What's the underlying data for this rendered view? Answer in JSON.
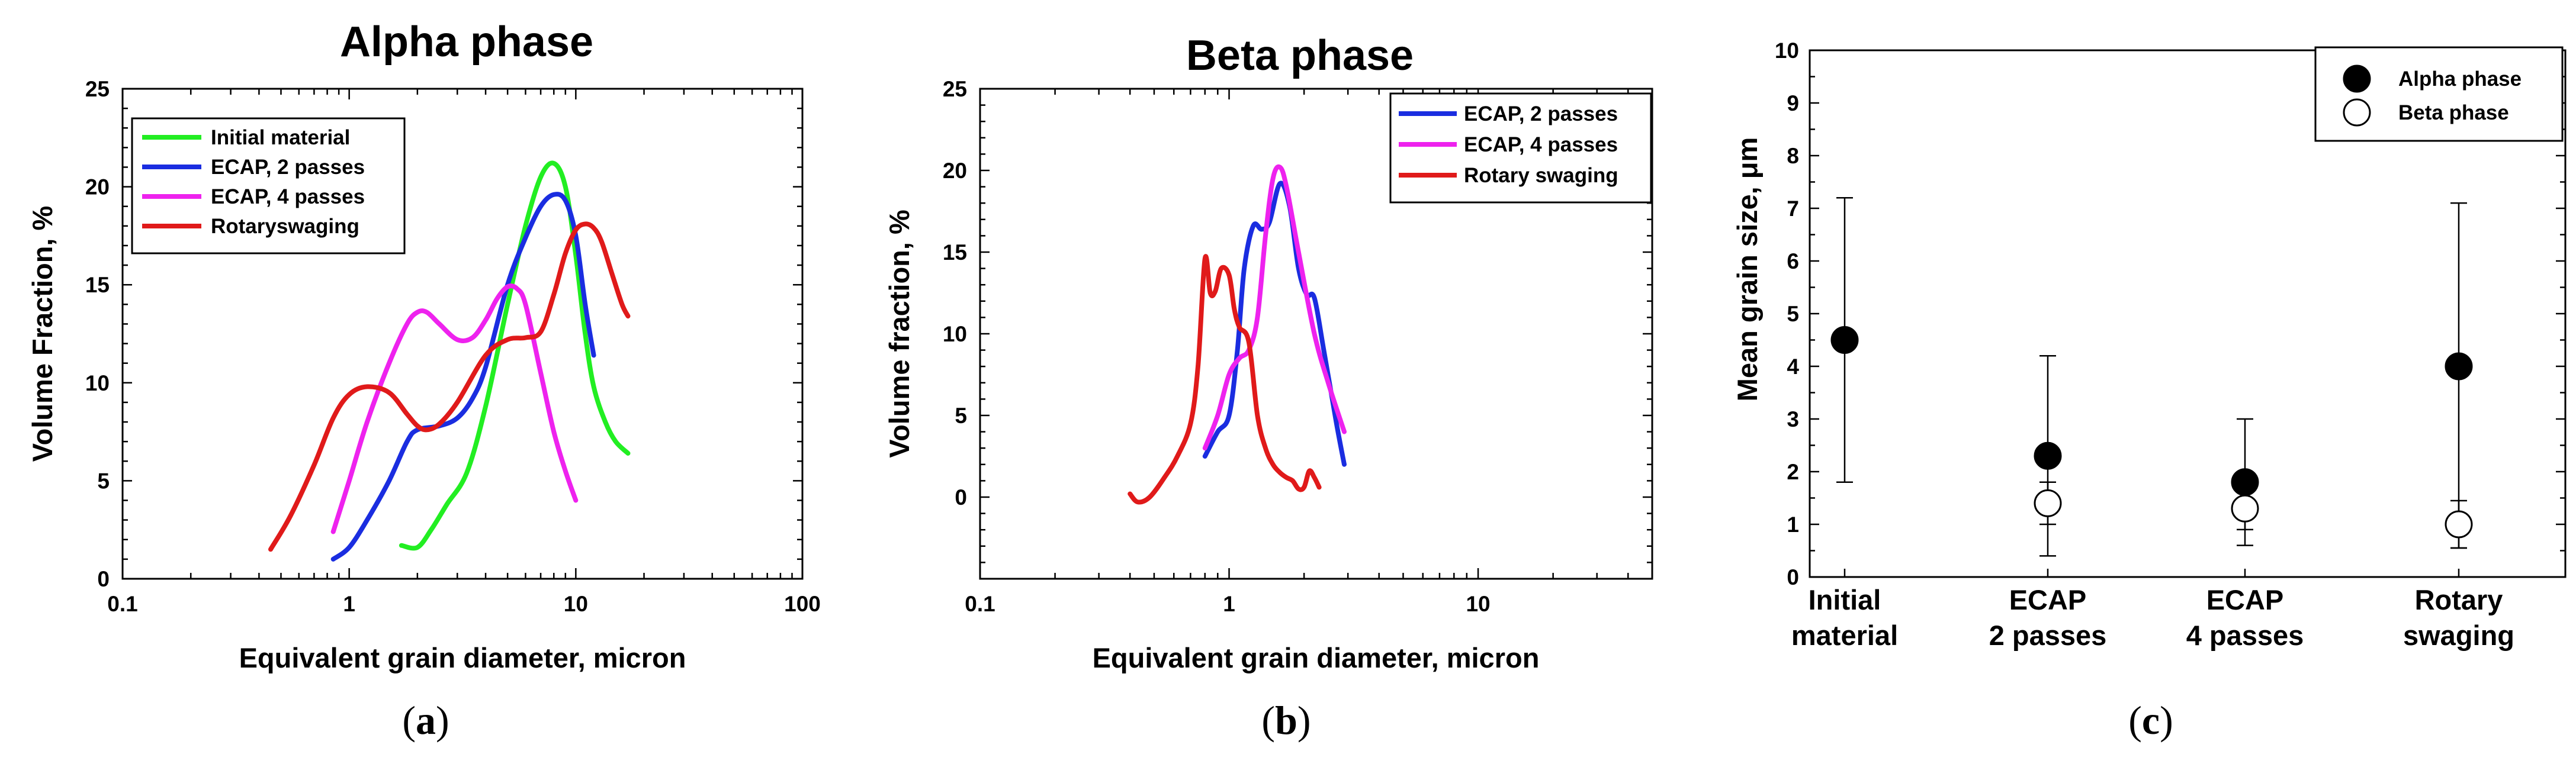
{
  "chart_data": [
    {
      "type": "line",
      "panel": "a",
      "title": "Alpha phase",
      "xlabel": "Equivalent grain diameter, micron",
      "ylabel": "Volume Fraction, %",
      "xscale": "log",
      "xlim": [
        0.1,
        100
      ],
      "ylim": [
        0,
        25
      ],
      "xticks": [
        "0.1",
        "1",
        "10",
        "100"
      ],
      "yticks": [
        "0",
        "5",
        "10",
        "15",
        "20",
        "25"
      ],
      "legend_position": "top-left",
      "series": [
        {
          "name": "Initial material",
          "color": "#22ee22",
          "x": [
            1.7,
            2.0,
            2.3,
            2.7,
            3.3,
            4.0,
            5.0,
            6.0,
            7.0,
            8.0,
            9.0,
            10.0,
            11.0,
            12.0,
            13.5,
            15.0,
            17.0
          ],
          "y": [
            1.7,
            1.6,
            2.5,
            3.8,
            5.4,
            8.8,
            14.0,
            18.0,
            20.5,
            21.2,
            20.0,
            16.5,
            12.5,
            9.8,
            8.0,
            7.0,
            6.4
          ]
        },
        {
          "name": "ECAP, 2 passes",
          "color": "#1a2de0",
          "x": [
            0.85,
            1.0,
            1.2,
            1.5,
            1.8,
            2.0,
            2.5,
            3.0,
            3.5,
            4.0,
            5.0,
            6.0,
            7.0,
            8.0,
            9.0,
            10.0,
            11.0,
            12.0
          ],
          "y": [
            1.0,
            1.6,
            3.0,
            5.0,
            7.0,
            7.6,
            7.8,
            8.2,
            9.2,
            10.8,
            15.0,
            17.4,
            19.0,
            19.6,
            19.3,
            17.5,
            14.0,
            11.4
          ]
        },
        {
          "name": "ECAP, 4 passes",
          "color": "#ee22ee",
          "x": [
            0.85,
            1.0,
            1.2,
            1.5,
            1.8,
            2.0,
            2.2,
            2.5,
            3.0,
            3.5,
            4.0,
            4.5,
            5.0,
            5.5,
            6.0,
            7.0,
            8.0,
            9.0,
            10.0
          ],
          "y": [
            2.4,
            5.0,
            8.0,
            11.0,
            13.0,
            13.6,
            13.6,
            13.0,
            12.2,
            12.3,
            13.2,
            14.3,
            14.9,
            14.8,
            14.0,
            10.5,
            7.5,
            5.5,
            4.0
          ]
        },
        {
          "name": "Rotaryswaging",
          "color": "#e01a1a",
          "x": [
            0.45,
            0.55,
            0.7,
            0.85,
            1.0,
            1.2,
            1.5,
            1.8,
            2.0,
            2.2,
            2.5,
            3.0,
            4.0,
            5.0,
            6.0,
            7.0,
            8.0,
            9.0,
            10.0,
            11.0,
            12.0,
            13.0,
            14.5,
            16.0,
            17.0
          ],
          "y": [
            1.5,
            3.2,
            5.8,
            8.2,
            9.4,
            9.8,
            9.5,
            8.4,
            7.8,
            7.6,
            7.9,
            9.0,
            11.4,
            12.2,
            12.3,
            12.6,
            14.5,
            16.6,
            17.8,
            18.1,
            17.9,
            17.2,
            15.5,
            14.0,
            13.4
          ]
        }
      ]
    },
    {
      "type": "line",
      "panel": "b",
      "title": "Beta phase",
      "xlabel": "Equivalent grain diameter, micron",
      "ylabel": "Volume fraction, %",
      "xscale": "log",
      "xlim": [
        0.1,
        50
      ],
      "ylim": [
        -5,
        25
      ],
      "xticks": [
        "0.1",
        "1",
        "10"
      ],
      "yticks": [
        "0",
        "5",
        "10",
        "15",
        "20",
        "25"
      ],
      "legend_position": "top-right",
      "series": [
        {
          "name": "ECAP, 2 passes",
          "color": "#1a2de0",
          "x": [
            0.8,
            0.9,
            1.0,
            1.08,
            1.15,
            1.25,
            1.35,
            1.45,
            1.6,
            1.75,
            1.9,
            2.05,
            2.2,
            2.4,
            2.7,
            2.9
          ],
          "y": [
            2.5,
            4.0,
            5.0,
            9.0,
            14.0,
            16.6,
            16.4,
            16.8,
            19.2,
            17.8,
            14.0,
            12.4,
            12.2,
            9.0,
            4.5,
            2.0
          ]
        },
        {
          "name": "ECAP, 4 passes",
          "color": "#ee22ee",
          "x": [
            0.8,
            0.9,
            1.0,
            1.1,
            1.2,
            1.3,
            1.4,
            1.5,
            1.6,
            1.7,
            1.9,
            2.2,
            2.5,
            2.9
          ],
          "y": [
            3.0,
            5.0,
            7.5,
            8.5,
            9.0,
            11.0,
            16.0,
            19.5,
            20.2,
            19.0,
            15.0,
            10.0,
            7.0,
            4.0
          ]
        },
        {
          "name": "Rotary swaging",
          "color": "#e01a1a",
          "x": [
            0.4,
            0.43,
            0.48,
            0.55,
            0.62,
            0.7,
            0.75,
            0.8,
            0.84,
            0.88,
            0.93,
            1.0,
            1.05,
            1.1,
            1.2,
            1.3,
            1.4,
            1.5,
            1.6,
            1.7,
            1.8,
            1.9,
            2.0,
            2.1,
            2.2,
            2.3
          ],
          "y": [
            0.2,
            -0.3,
            0.0,
            1.2,
            2.5,
            4.5,
            8.0,
            14.6,
            12.5,
            12.6,
            14.0,
            13.6,
            11.5,
            10.4,
            9.5,
            5.0,
            3.0,
            2.0,
            1.5,
            1.2,
            1.0,
            0.5,
            0.6,
            1.6,
            1.2,
            0.6
          ]
        }
      ]
    },
    {
      "type": "scatter",
      "panel": "c",
      "title": "",
      "xlabel": "",
      "ylabel": "Mean grain size, μm",
      "ylim": [
        0,
        10
      ],
      "yticks": [
        "0",
        "1",
        "2",
        "3",
        "4",
        "5",
        "6",
        "7",
        "8",
        "9",
        "10"
      ],
      "categories": [
        "Initial material",
        "ECAP 2 passes",
        "ECAP 4 passes",
        "Rotary swaging"
      ],
      "category_lines": [
        [
          "Initial",
          "material"
        ],
        [
          "ECAP",
          "2 passes"
        ],
        [
          "ECAP",
          "4 passes"
        ],
        [
          "Rotary",
          "swaging"
        ]
      ],
      "legend_position": "top-right",
      "series": [
        {
          "name": "Alpha phase",
          "marker": "filled-circle",
          "values": [
            4.5,
            2.3,
            1.8,
            4.0
          ],
          "err_low": [
            1.8,
            0.4,
            0.6,
            0.55
          ],
          "err_high": [
            7.2,
            4.2,
            3.0,
            7.1
          ]
        },
        {
          "name": "Beta phase",
          "marker": "open-circle",
          "values": [
            null,
            1.4,
            1.3,
            1.0
          ],
          "err_low": [
            null,
            1.0,
            0.9,
            0.55
          ],
          "err_high": [
            null,
            1.8,
            1.7,
            1.45
          ]
        }
      ]
    }
  ],
  "captions": [
    {
      "label": "a"
    },
    {
      "label": "b"
    },
    {
      "label": "c"
    }
  ]
}
